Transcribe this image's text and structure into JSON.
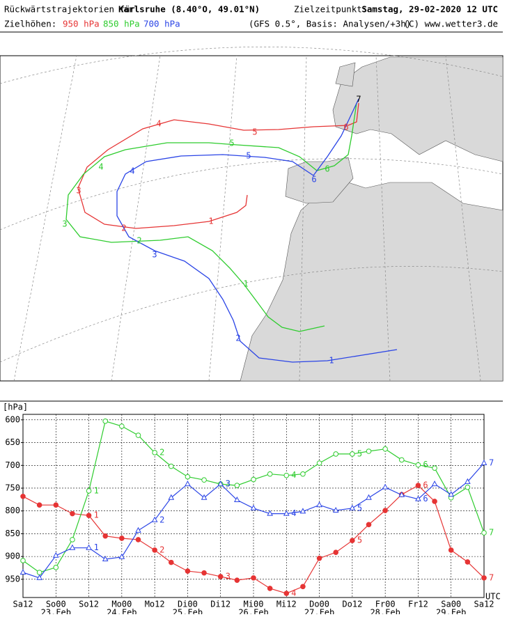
{
  "header": {
    "title_prefix": "Rückwärtstrajektorien für",
    "location": "Karlsruhe (8.40°O, 49.01°N)",
    "target_label": "Zielzeitpunkt:",
    "target_time": "Samstag, 29-02-2020  12 UTC",
    "levels_label": "Zielhöhen:",
    "level_950": "950 hPa",
    "level_850": "850 hPa",
    "level_700": "700 hPa",
    "model": "(GFS 0.5°, Basis: Analysen/+3h)",
    "copyright": "(C) www.wetter3.de"
  },
  "map": {
    "labels_950": [
      "1",
      "2",
      "3",
      "4",
      "5",
      "6"
    ],
    "labels_850": [
      "1",
      "2",
      "3",
      "4",
      "5",
      "6"
    ],
    "labels_700": [
      "1",
      "2",
      "3",
      "4",
      "5",
      "6",
      "7"
    ]
  },
  "chart_data": {
    "type": "line",
    "y_unit": "[hPa]",
    "x_unit": "UTC",
    "categories": [
      "Sa12",
      null,
      "So00",
      null,
      "So12",
      null,
      "Mo00",
      null,
      "Mo12",
      null,
      "Di00",
      null,
      "Di12",
      null,
      "Mi00",
      null,
      "Mi12",
      null,
      "Do00",
      null,
      "Do12",
      null,
      "Fr00",
      null,
      "Fr12",
      null,
      "Sa00",
      null,
      "Sa12"
    ],
    "date_labels": [
      null,
      null,
      "23.Feb",
      null,
      null,
      null,
      "24.Feb",
      null,
      null,
      null,
      "25.Feb",
      null,
      null,
      null,
      "26.Feb",
      null,
      null,
      null,
      "27.Feb",
      null,
      null,
      null,
      "28.Feb",
      null,
      null,
      null,
      "29.Feb",
      null,
      null
    ],
    "ylim": [
      588,
      990
    ],
    "invert_y": true,
    "yticks": [
      600,
      650,
      700,
      750,
      800,
      850,
      900,
      950
    ],
    "grid": true,
    "series": [
      {
        "name": "950 hPa",
        "color": "#e63434",
        "marker": "filled-circle",
        "values": [
          768,
          787,
          787,
          806,
          810,
          855,
          860,
          863,
          886,
          913,
          932,
          936,
          944,
          952,
          947,
          970,
          981,
          966,
          904,
          891,
          865,
          830,
          799,
          764,
          744,
          779,
          886,
          912,
          947
        ],
        "day_labels": [
          "1",
          "2",
          "3",
          "4",
          "5",
          "6",
          "7"
        ]
      },
      {
        "name": "850 hPa",
        "color": "#2ecc2e",
        "marker": "open-circle",
        "values": [
          909,
          935,
          924,
          863,
          756,
          603,
          614,
          634,
          672,
          702,
          725,
          732,
          741,
          744,
          731,
          719,
          722,
          719,
          695,
          675,
          675,
          669,
          664,
          688,
          699,
          706,
          771,
          748,
          848
        ],
        "day_labels": [
          "1",
          "2",
          "3",
          "4",
          "5",
          "6",
          "7"
        ]
      },
      {
        "name": "700 hPa",
        "color": "#2a44e6",
        "marker": "open-triangle",
        "values": [
          935,
          947,
          898,
          881,
          881,
          906,
          901,
          843,
          820,
          771,
          741,
          771,
          741,
          776,
          794,
          806,
          806,
          801,
          787,
          799,
          794,
          771,
          748,
          765,
          774,
          741,
          764,
          736,
          695
        ],
        "day_labels": [
          "1",
          "2",
          "3",
          "4",
          "5",
          "6",
          "7"
        ]
      }
    ]
  }
}
